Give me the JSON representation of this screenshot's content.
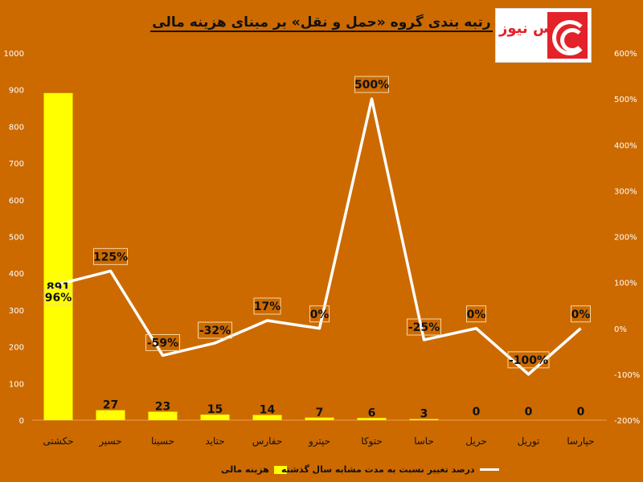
{
  "title": "رتبه بندی گروه «حمل و نقل» بر مبنای هزینه مالی",
  "logo_text": "بورس نیوز",
  "colors": {
    "background": "#cc6a00",
    "bar": "#ffff00",
    "line": "#ffffff",
    "brand": "#e3222a"
  },
  "chart_data": {
    "type": "bar",
    "categories": [
      "حکشتی",
      "حسیر",
      "حسینا",
      "حتاید",
      "حفارس",
      "حپترو",
      "حتوکا",
      "حاسا",
      "حریل",
      "توریل",
      "حپارسا"
    ],
    "series": [
      {
        "name": "هزینه مالی",
        "type": "bar",
        "axis": "left",
        "values": [
          891,
          27,
          23,
          15,
          14,
          7,
          6,
          3,
          0,
          0,
          0
        ],
        "labels": [
          "891",
          "27",
          "23",
          "15",
          "14",
          "7",
          "6",
          "3",
          "0",
          "0",
          "0"
        ]
      },
      {
        "name": "درصد تغییر نسبت به مدت مشابه سال گذشته",
        "type": "line",
        "axis": "right",
        "values": [
          96,
          125,
          -59,
          -32,
          17,
          0,
          500,
          -25,
          0,
          -100,
          0
        ],
        "labels": [
          "96%",
          "125%",
          "-59%",
          "-32%",
          "17%",
          "0%",
          "500%",
          "-25%",
          "0%",
          "-100%",
          "0%"
        ]
      }
    ],
    "y_left": {
      "range": [
        0,
        1000
      ],
      "ticks": [
        "0",
        "100",
        "200",
        "300",
        "400",
        "500",
        "600",
        "700",
        "800",
        "900",
        "1000"
      ]
    },
    "y_right": {
      "range": [
        -200,
        600
      ],
      "ticks": [
        "-200%",
        "-100%",
        "0%",
        "100%",
        "200%",
        "300%",
        "400%",
        "500%",
        "600%"
      ]
    },
    "grid": false,
    "legend": "bottom"
  }
}
